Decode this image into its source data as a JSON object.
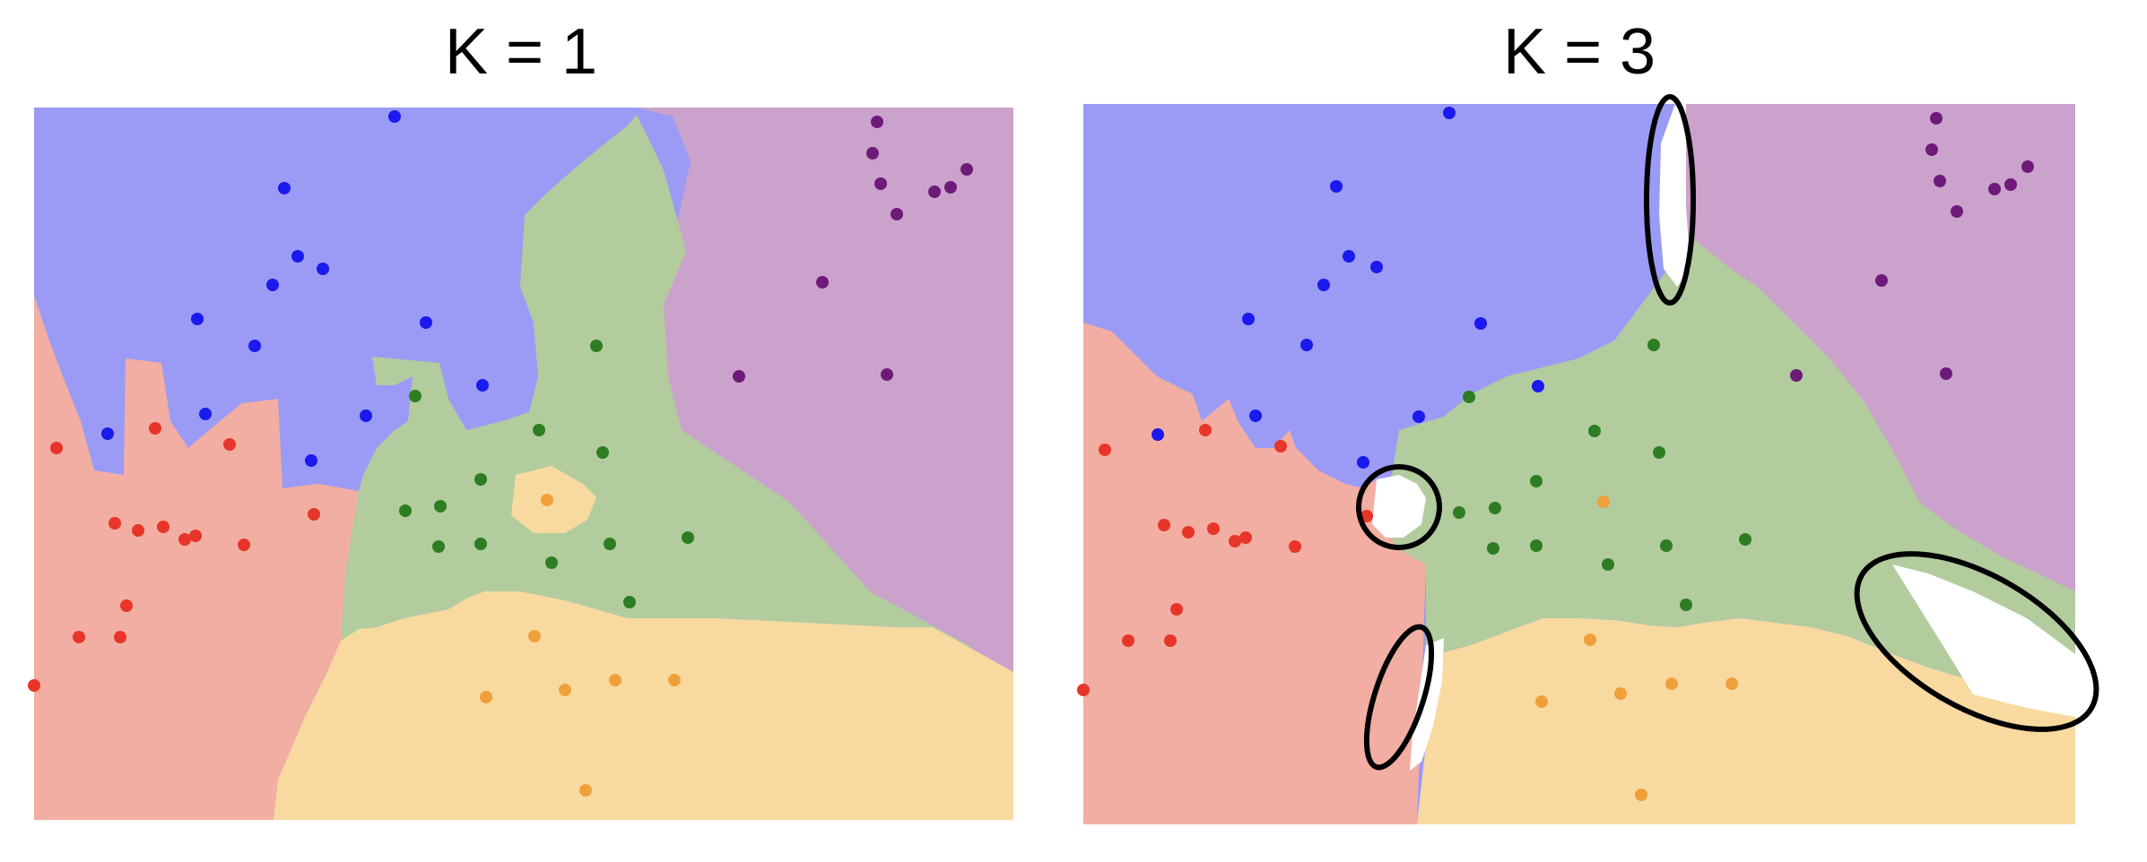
{
  "panels": [
    {
      "title": "K = 1",
      "colors": {
        "blue": "#9b9bf5",
        "red": "#f2aea2",
        "green": "#b2cc9e",
        "orange": "#f8daa1",
        "purple": "#cba2cb"
      },
      "highlighted_regions": 0
    },
    {
      "title": "K = 3",
      "colors": {
        "blue": "#9b9bf5",
        "red": "#f2aea2",
        "green": "#b2cc9e",
        "orange": "#f8daa1",
        "purple": "#cba2cb",
        "unassigned": "#ffffff"
      },
      "highlighted_regions": 4
    }
  ],
  "point_colors": {
    "blue": "#1a1aee",
    "red": "#e8352a",
    "green": "#2e7d22",
    "orange": "#f0a03a",
    "purple": "#6e1a7a"
  }
}
